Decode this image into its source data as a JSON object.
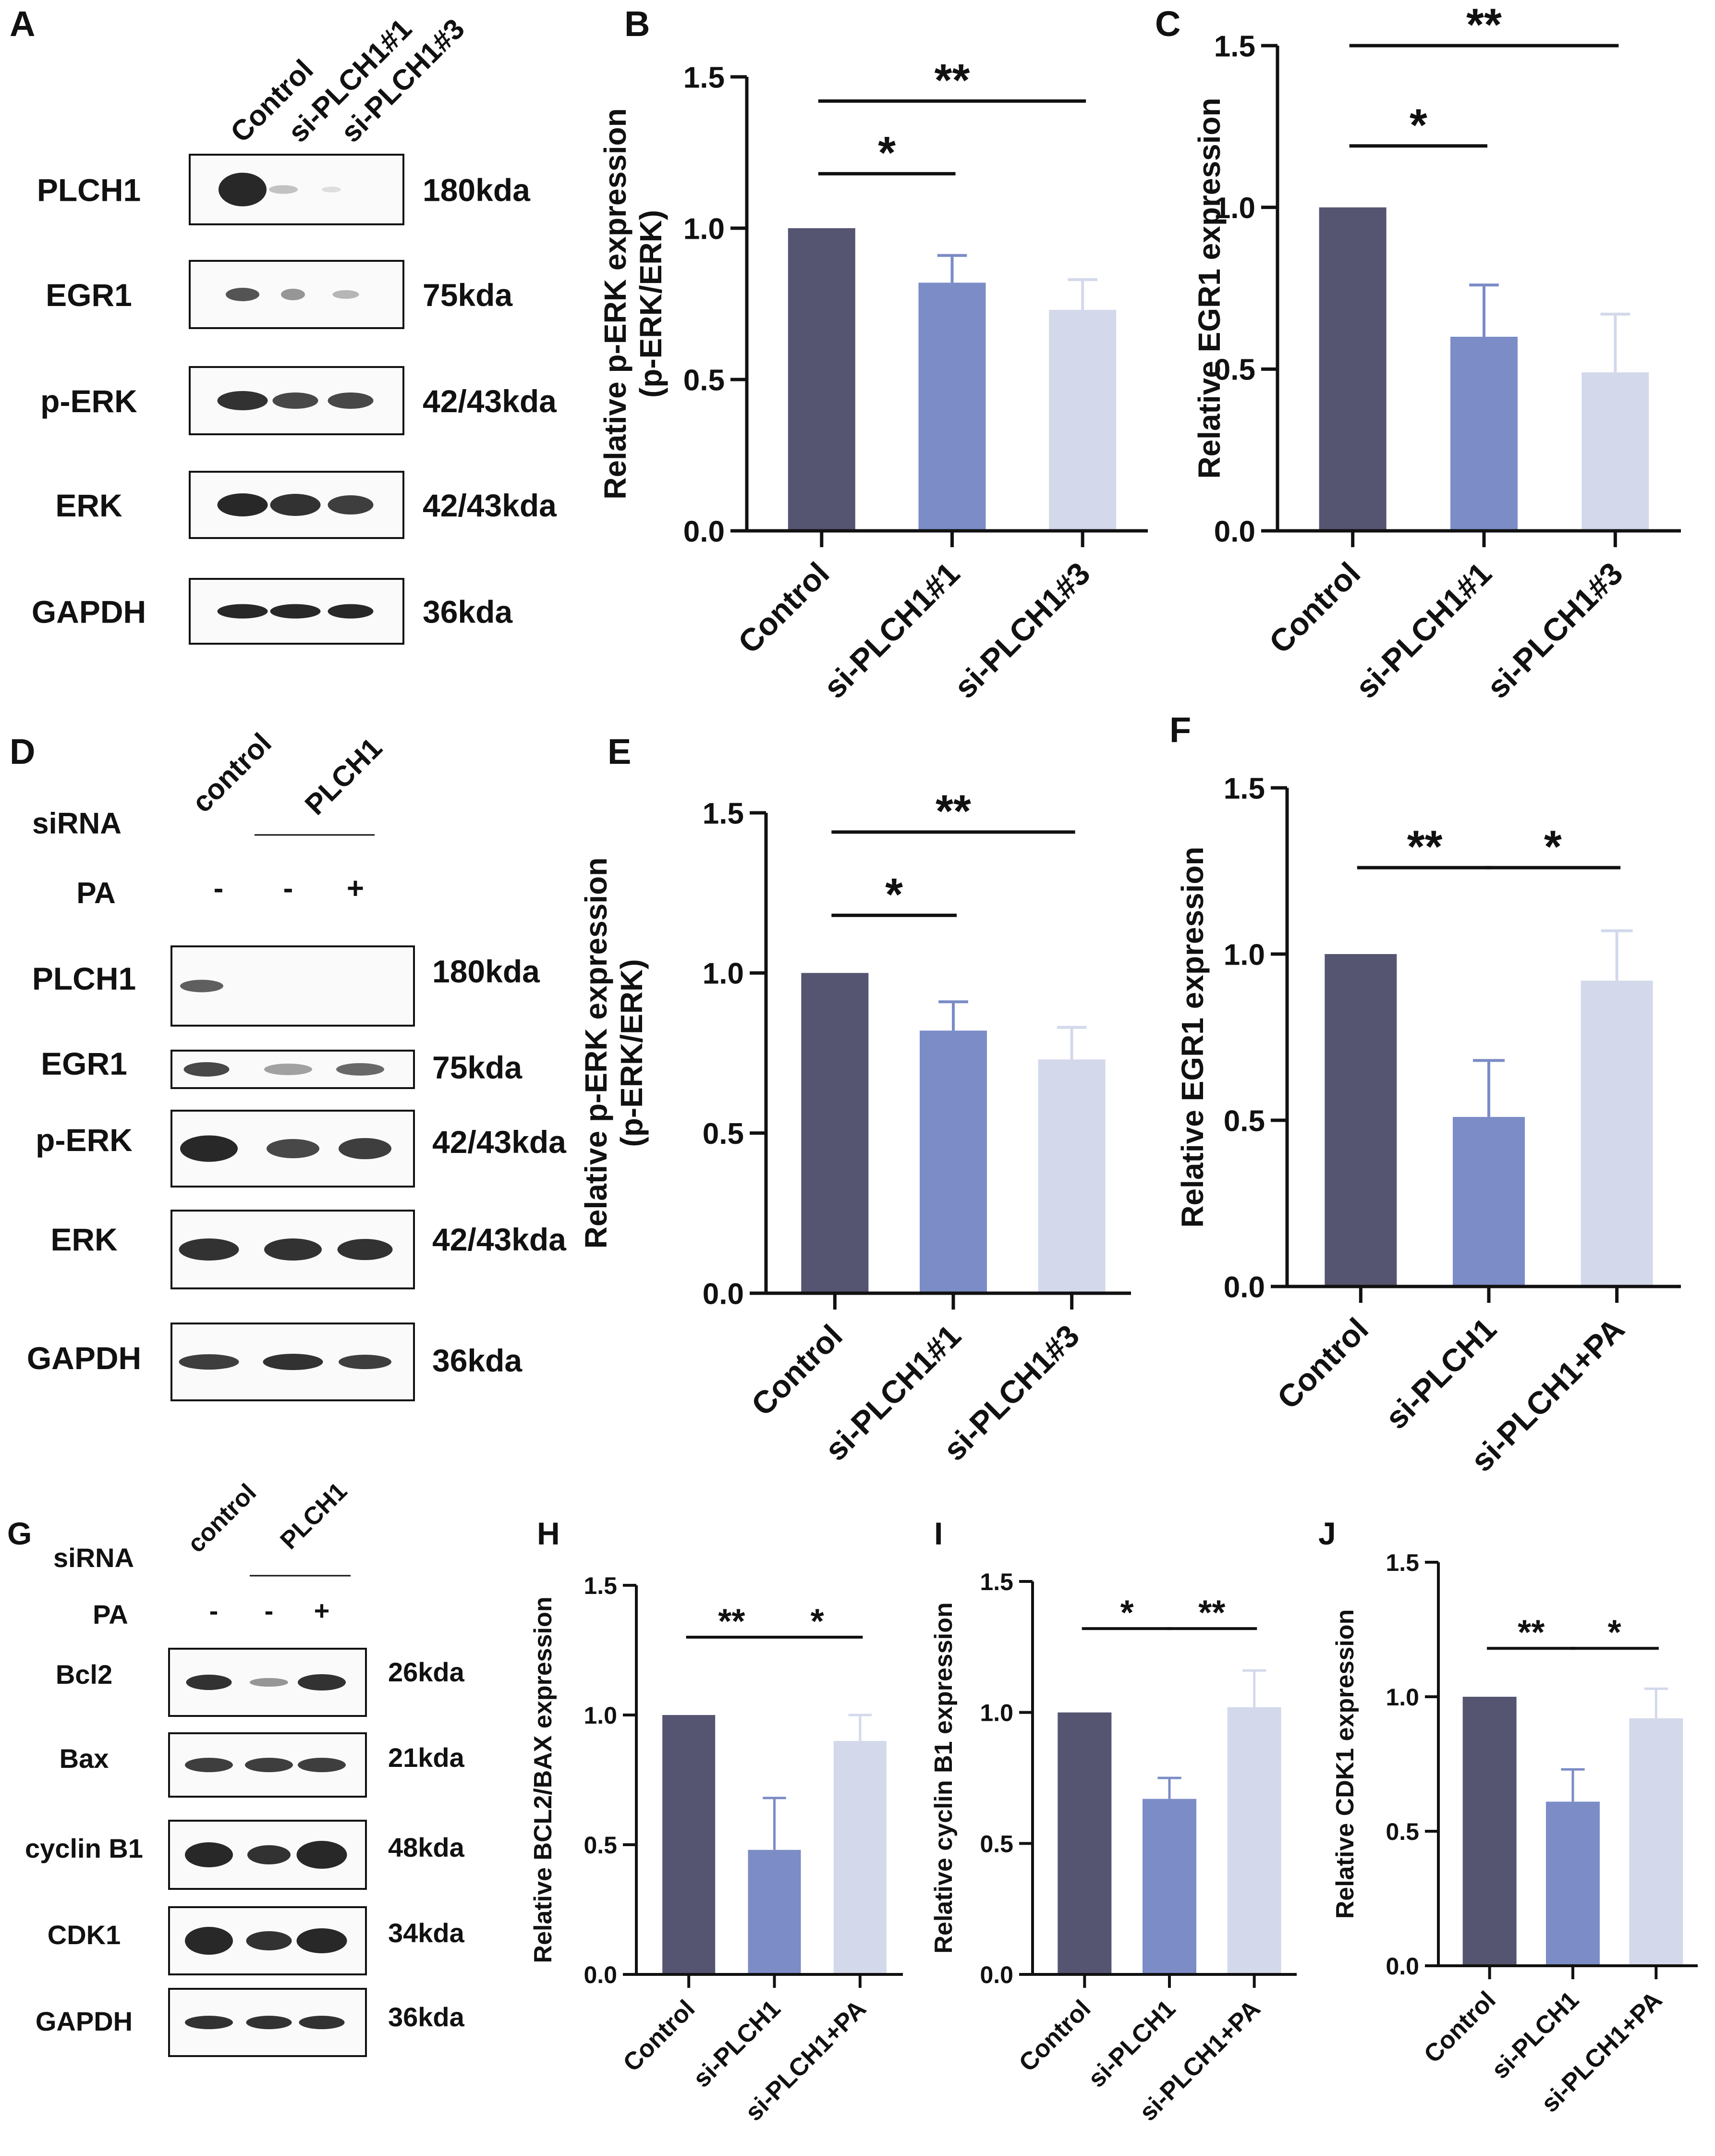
{
  "colors": {
    "control": "#555571",
    "si1": "#7b8cc6",
    "si3": "#d3d9eb",
    "axis": "#111111",
    "blot_band": "#1c1c1c"
  },
  "panels": {
    "A": {
      "letter": "A",
      "lane_labels": [
        "Control",
        "si-PLCH1#1",
        "si-PLCH1#3"
      ],
      "rows": [
        {
          "name": "PLCH1",
          "size": "180kda"
        },
        {
          "name": "EGR1",
          "size": "75kda"
        },
        {
          "name": "p-ERK",
          "size": "42/43kda"
        },
        {
          "name": "ERK",
          "size": "42/43kda"
        },
        {
          "name": "GAPDH",
          "size": "36kda"
        }
      ]
    },
    "D": {
      "letter": "D",
      "lane_labels": [
        "control",
        "PLCH1"
      ],
      "siRNA_label": "siRNA",
      "pa_label": "PA",
      "pa_signs": [
        "-",
        "-",
        "+"
      ],
      "rows": [
        {
          "name": "PLCH1",
          "size": "180kda"
        },
        {
          "name": "EGR1",
          "size": "75kda"
        },
        {
          "name": "p-ERK",
          "size": "42/43kda"
        },
        {
          "name": "ERK",
          "size": "42/43kda"
        },
        {
          "name": "GAPDH",
          "size": "36kda"
        }
      ]
    },
    "G": {
      "letter": "G",
      "lane_labels": [
        "control",
        "PLCH1"
      ],
      "siRNA_label": "siRNA",
      "pa_label": "PA",
      "pa_signs": [
        "-",
        "-",
        "+"
      ],
      "rows": [
        {
          "name": "Bcl2",
          "size": "26kda"
        },
        {
          "name": "Bax",
          "size": "21kda"
        },
        {
          "name": "cyclin B1",
          "size": "48kda"
        },
        {
          "name": "CDK1",
          "size": "34kda"
        },
        {
          "name": "GAPDH",
          "size": "36kda"
        }
      ]
    }
  },
  "chart_data": [
    {
      "id": "B",
      "letter": "B",
      "type": "bar",
      "ylabel": [
        "Relative p-ERK expression",
        "(p-ERK/ERK)"
      ],
      "categories": [
        "Control",
        "si-PLCH1#1",
        "si-PLCH1#3"
      ],
      "values": [
        1.0,
        0.82,
        0.73
      ],
      "errors": [
        0,
        0.09,
        0.1
      ],
      "ylim": [
        0,
        1.5
      ],
      "yticks": [
        "0.0",
        "0.5",
        "1.0",
        "1.5"
      ],
      "significance": [
        {
          "from": 0,
          "to": 1,
          "label": "*",
          "level": 1.18
        },
        {
          "from": 0,
          "to": 2,
          "label": "**",
          "level": 1.42
        }
      ]
    },
    {
      "id": "C",
      "letter": "C",
      "type": "bar",
      "ylabel": [
        "Relative EGR1 expression"
      ],
      "categories": [
        "Control",
        "si-PLCH1#1",
        "si-PLCH1#3"
      ],
      "values": [
        1.0,
        0.6,
        0.49
      ],
      "errors": [
        0,
        0.16,
        0.18
      ],
      "ylim": [
        0,
        1.5
      ],
      "yticks": [
        "0.0",
        "0.5",
        "1.0",
        "1.5"
      ],
      "significance": [
        {
          "from": 0,
          "to": 1,
          "label": "*",
          "level": 1.19
        },
        {
          "from": 0,
          "to": 2,
          "label": "**",
          "level": 1.5
        }
      ]
    },
    {
      "id": "E",
      "letter": "E",
      "type": "bar",
      "ylabel": [
        "Relative p-ERK expression",
        "(p-ERK/ERK)"
      ],
      "categories": [
        "Control",
        "si-PLCH1#1",
        "si-PLCH1#3"
      ],
      "values": [
        1.0,
        0.82,
        0.73
      ],
      "errors": [
        0,
        0.09,
        0.1
      ],
      "ylim": [
        0,
        1.5
      ],
      "yticks": [
        "0.0",
        "0.5",
        "1.0",
        "1.5"
      ],
      "significance": [
        {
          "from": 0,
          "to": 1,
          "label": "*",
          "level": 1.18
        },
        {
          "from": 0,
          "to": 2,
          "label": "**",
          "level": 1.44
        }
      ]
    },
    {
      "id": "F",
      "letter": "F",
      "type": "bar",
      "ylabel": [
        "Relative EGR1 expression"
      ],
      "categories": [
        "Control",
        "si-PLCH1",
        "si-PLCH1+PA"
      ],
      "values": [
        1.0,
        0.51,
        0.92
      ],
      "errors": [
        0,
        0.17,
        0.15
      ],
      "ylim": [
        0,
        1.5
      ],
      "yticks": [
        "0.0",
        "0.5",
        "1.0",
        "1.5"
      ],
      "significance": [
        {
          "from": 0,
          "to": 1,
          "label": "**",
          "level": 1.26
        },
        {
          "from": 1,
          "to": 2,
          "label": "*",
          "level": 1.26
        }
      ]
    },
    {
      "id": "H",
      "letter": "H",
      "type": "bar",
      "ylabel": [
        "Relative BCL2/BAX expression"
      ],
      "categories": [
        "Control",
        "si-PLCH1",
        "si-PLCH1+PA"
      ],
      "values": [
        1.0,
        0.48,
        0.9
      ],
      "errors": [
        0,
        0.2,
        0.1
      ],
      "ylim": [
        0,
        1.5
      ],
      "yticks": [
        "0.0",
        "0.5",
        "1.0",
        "1.5"
      ],
      "significance": [
        {
          "from": 0,
          "to": 1,
          "label": "**",
          "level": 1.3
        },
        {
          "from": 1,
          "to": 2,
          "label": "*",
          "level": 1.3
        }
      ]
    },
    {
      "id": "I",
      "letter": "I",
      "type": "bar",
      "ylabel": [
        "Relative cyclin B1 expression"
      ],
      "categories": [
        "Control",
        "si-PLCH1",
        "si-PLCH1+PA"
      ],
      "values": [
        1.0,
        0.67,
        1.02
      ],
      "errors": [
        0,
        0.08,
        0.14
      ],
      "ylim": [
        0,
        1.5
      ],
      "yticks": [
        "0.0",
        "0.5",
        "1.0",
        "1.5"
      ],
      "significance": [
        {
          "from": 0,
          "to": 1,
          "label": "*",
          "level": 1.32
        },
        {
          "from": 1,
          "to": 2,
          "label": "**",
          "level": 1.32
        }
      ]
    },
    {
      "id": "J",
      "letter": "J",
      "type": "bar",
      "ylabel": [
        "Relative CDK1 expression"
      ],
      "categories": [
        "Control",
        "si-PLCH1",
        "si-PLCH1+PA"
      ],
      "values": [
        1.0,
        0.61,
        0.92
      ],
      "errors": [
        0,
        0.12,
        0.11
      ],
      "ylim": [
        0,
        1.5
      ],
      "yticks": [
        "0.0",
        "0.5",
        "1.0",
        "1.5"
      ],
      "significance": [
        {
          "from": 0,
          "to": 1,
          "label": "**",
          "level": 1.18
        },
        {
          "from": 1,
          "to": 2,
          "label": "*",
          "level": 1.18
        }
      ]
    }
  ]
}
